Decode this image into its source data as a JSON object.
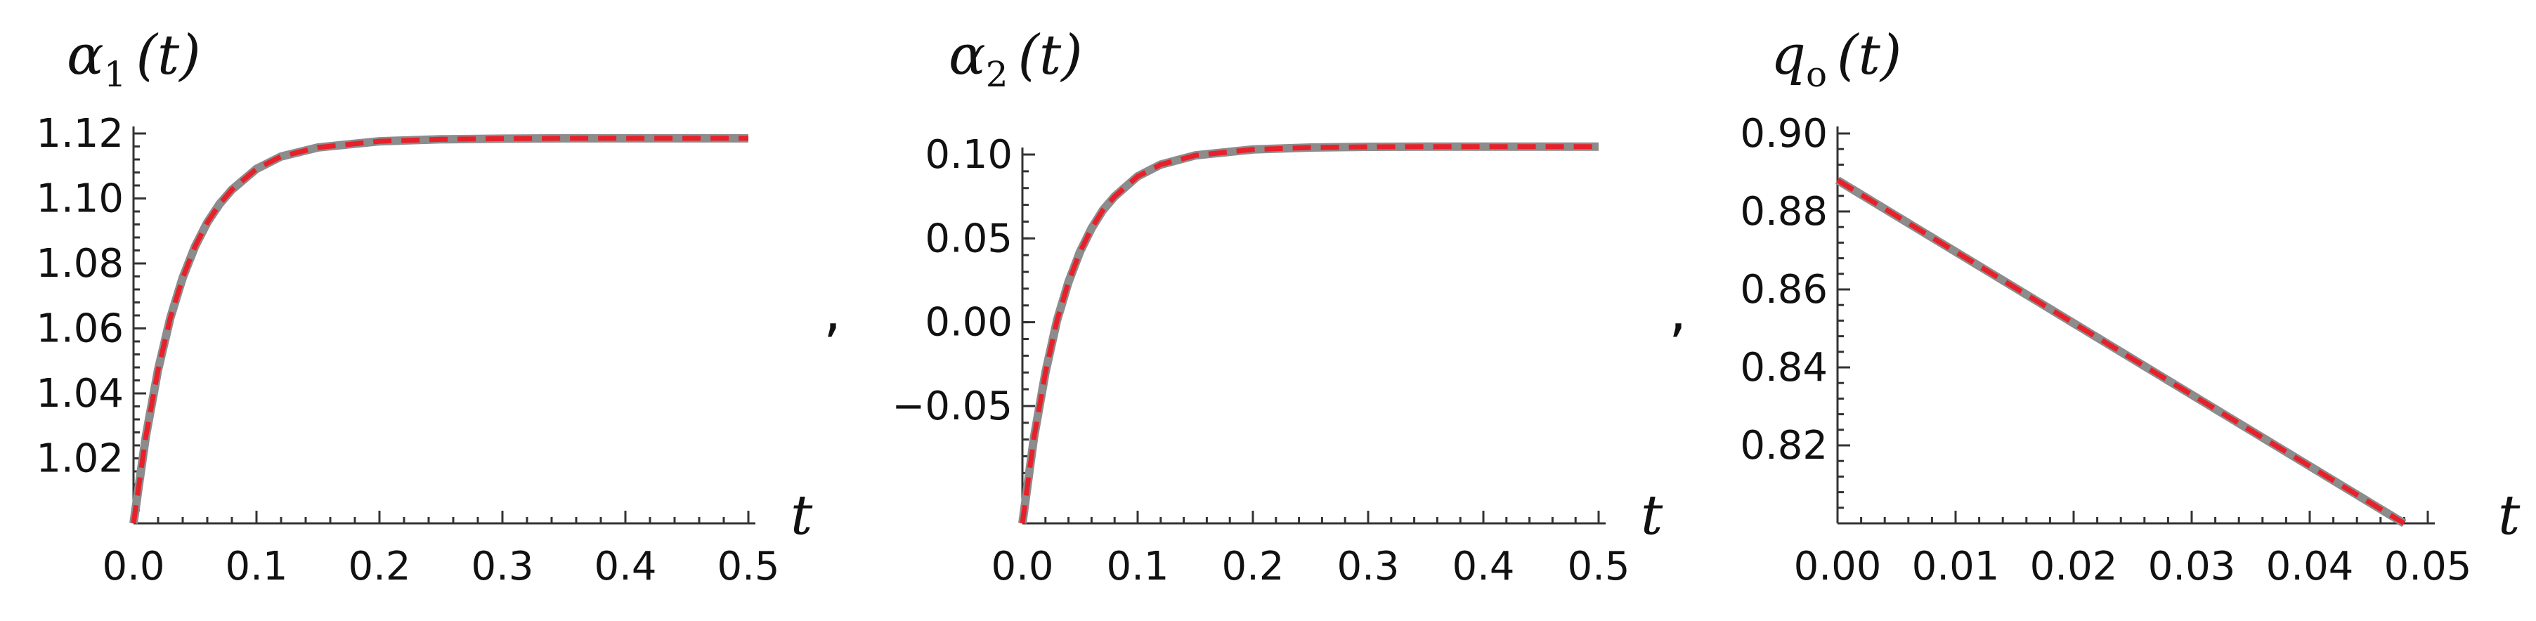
{
  "separators": [
    ",",
    ","
  ],
  "chart_data": [
    {
      "type": "line",
      "ylabel": {
        "symbol": "α",
        "sub": "1",
        "arg": "(t)"
      },
      "xlabel": "t",
      "xlim": [
        0,
        0.5
      ],
      "ylim": [
        1.0,
        1.12
      ],
      "xticks": [
        0.0,
        0.1,
        0.2,
        0.3,
        0.4,
        0.5
      ],
      "xtick_labels": [
        "0.0",
        "0.1",
        "0.2",
        "0.3",
        "0.4",
        "0.5"
      ],
      "yticks": [
        1.02,
        1.04,
        1.06,
        1.08,
        1.1,
        1.12
      ],
      "ytick_labels": [
        "1.02",
        "1.04",
        "1.06",
        "1.08",
        "1.10",
        "1.12"
      ],
      "series": [
        {
          "style": "solid",
          "color": "#8c8c8c",
          "x": [
            0,
            0.01,
            0.02,
            0.03,
            0.04,
            0.05,
            0.06,
            0.07,
            0.08,
            0.1,
            0.12,
            0.15,
            0.2,
            0.25,
            0.3,
            0.35,
            0.4,
            0.45,
            0.5
          ],
          "y": [
            1.0,
            1.0267,
            1.0473,
            1.0633,
            1.0756,
            1.0852,
            1.0926,
            1.0983,
            1.1027,
            1.1091,
            1.1129,
            1.1157,
            1.1176,
            1.1182,
            1.1184,
            1.1185,
            1.1185,
            1.1185,
            1.1185
          ]
        },
        {
          "style": "dashed",
          "color": "#e8202a",
          "x": [
            0,
            0.01,
            0.02,
            0.03,
            0.04,
            0.05,
            0.06,
            0.07,
            0.08,
            0.1,
            0.12,
            0.15,
            0.2,
            0.25,
            0.3,
            0.35,
            0.4,
            0.45,
            0.5
          ],
          "y": [
            1.0,
            1.0267,
            1.0473,
            1.0633,
            1.0756,
            1.0852,
            1.0926,
            1.0983,
            1.1027,
            1.1091,
            1.1129,
            1.1157,
            1.1176,
            1.1182,
            1.1184,
            1.1185,
            1.1185,
            1.1185,
            1.1185
          ]
        }
      ]
    },
    {
      "type": "line",
      "ylabel": {
        "symbol": "α",
        "sub": "2",
        "arg": "(t)"
      },
      "xlabel": "t",
      "xlim": [
        0,
        0.5
      ],
      "ylim": [
        -0.12,
        0.1
      ],
      "xticks": [
        0.0,
        0.1,
        0.2,
        0.3,
        0.4,
        0.5
      ],
      "xtick_labels": [
        "0.0",
        "0.1",
        "0.2",
        "0.3",
        "0.4",
        "0.5"
      ],
      "yticks": [
        -0.05,
        0.0,
        0.05,
        0.1
      ],
      "ytick_labels": [
        "−0.05",
        "0.00",
        "0.05",
        "0.10"
      ],
      "series": [
        {
          "style": "solid",
          "color": "#8c8c8c",
          "x": [
            0,
            0.01,
            0.02,
            0.03,
            0.04,
            0.05,
            0.06,
            0.07,
            0.08,
            0.1,
            0.12,
            0.15,
            0.2,
            0.25,
            0.3,
            0.35,
            0.4,
            0.45,
            0.5
          ],
          "y": [
            -0.12,
            -0.069,
            -0.03,
            0.001,
            0.024,
            0.042,
            0.056,
            0.067,
            0.075,
            0.087,
            0.094,
            0.0995,
            0.103,
            0.1042,
            0.1046,
            0.1047,
            0.1047,
            0.1047,
            0.1047
          ]
        },
        {
          "style": "dashed",
          "color": "#e8202a",
          "x": [
            0,
            0.01,
            0.02,
            0.03,
            0.04,
            0.05,
            0.06,
            0.07,
            0.08,
            0.1,
            0.12,
            0.15,
            0.2,
            0.25,
            0.3,
            0.35,
            0.4,
            0.45,
            0.5
          ],
          "y": [
            -0.12,
            -0.069,
            -0.03,
            0.001,
            0.024,
            0.042,
            0.056,
            0.067,
            0.075,
            0.087,
            0.094,
            0.0995,
            0.103,
            0.1042,
            0.1046,
            0.1047,
            0.1047,
            0.1047,
            0.1047
          ]
        }
      ]
    },
    {
      "type": "line",
      "ylabel": {
        "symbol": "q",
        "sub": "o",
        "arg": "(t)"
      },
      "xlabel": "t",
      "xlim": [
        0,
        0.05
      ],
      "ylim": [
        0.8,
        0.9
      ],
      "xticks": [
        0.0,
        0.01,
        0.02,
        0.03,
        0.04,
        0.05
      ],
      "xtick_labels": [
        "0.00",
        "0.01",
        "0.02",
        "0.03",
        "0.04",
        "0.05"
      ],
      "yticks": [
        0.82,
        0.84,
        0.86,
        0.88,
        0.9
      ],
      "ytick_labels": [
        "0.82",
        "0.84",
        "0.86",
        "0.88",
        "0.90"
      ],
      "series": [
        {
          "style": "solid",
          "color": "#8c8c8c",
          "x": [
            0,
            0.048
          ],
          "y": [
            0.888,
            0.8
          ]
        },
        {
          "style": "dashed",
          "color": "#e8202a",
          "x": [
            0,
            0.048
          ],
          "y": [
            0.888,
            0.8
          ]
        }
      ]
    }
  ]
}
